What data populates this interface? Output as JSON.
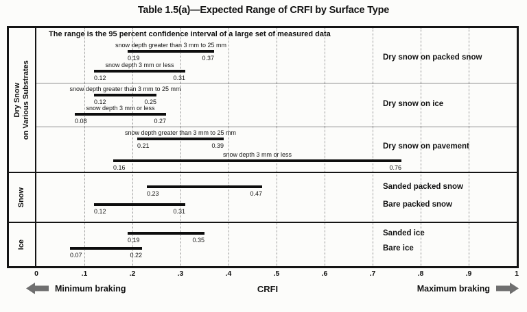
{
  "chart_data": {
    "type": "bar",
    "orientation": "horizontal-range",
    "title": "Table 1.5(a)—Expected Range of CRFI by Surface Type",
    "note": "The range is the 95 percent confidence interval of a large set of measured data",
    "axis": {
      "xlabel": "CRFI",
      "xlim": [
        0,
        1
      ],
      "ticks": [
        "0",
        ".1",
        ".2",
        ".3",
        ".4",
        ".5",
        ".6",
        ".7",
        ".8",
        ".9",
        "1"
      ],
      "grid": "dotted vertical gridlines every 0.1",
      "min_label": "Minimum braking",
      "max_label": "Maximum braking"
    },
    "bar_color": "#0d0d0d",
    "arrow_color": "#6f6f6f",
    "groups": [
      {
        "section": "Dry Snow on Various Substrates",
        "section_lines": [
          "Dry Snow",
          "on Various Substrates"
        ],
        "rows": [
          {
            "surface": "Dry snow on packed snow",
            "bars": [
              {
                "condition": "snow depth greater than 3 mm to 25 mm",
                "min": 0.19,
                "max": 0.37
              },
              {
                "condition": "snow depth 3 mm or less",
                "min": 0.12,
                "max": 0.31
              }
            ]
          },
          {
            "surface": "Dry snow on ice",
            "bars": [
              {
                "condition": "snow depth greater than 3 mm to 25 mm",
                "min": 0.12,
                "max": 0.25
              },
              {
                "condition": "snow depth 3 mm or less",
                "min": 0.08,
                "max": 0.27
              }
            ]
          },
          {
            "surface": "Dry snow on pavement",
            "bars": [
              {
                "condition": "snow depth greater than 3 mm to 25 mm",
                "min": 0.21,
                "max": 0.39
              },
              {
                "condition": "snow depth 3 mm or less",
                "min": 0.16,
                "max": 0.76
              }
            ]
          }
        ]
      },
      {
        "section": "Snow",
        "section_lines": [
          "Snow"
        ],
        "rows": [
          {
            "surface": "Sanded packed snow",
            "bars": [
              {
                "min": 0.23,
                "max": 0.47
              }
            ]
          },
          {
            "surface": "Bare packed snow",
            "bars": [
              {
                "min": 0.12,
                "max": 0.31
              }
            ]
          }
        ]
      },
      {
        "section": "Ice",
        "section_lines": [
          "Ice"
        ],
        "rows": [
          {
            "surface": "Sanded ice",
            "bars": [
              {
                "min": 0.19,
                "max": 0.35
              }
            ]
          },
          {
            "surface": "Bare ice",
            "bars": [
              {
                "min": 0.07,
                "max": 0.22
              }
            ]
          }
        ]
      }
    ]
  }
}
